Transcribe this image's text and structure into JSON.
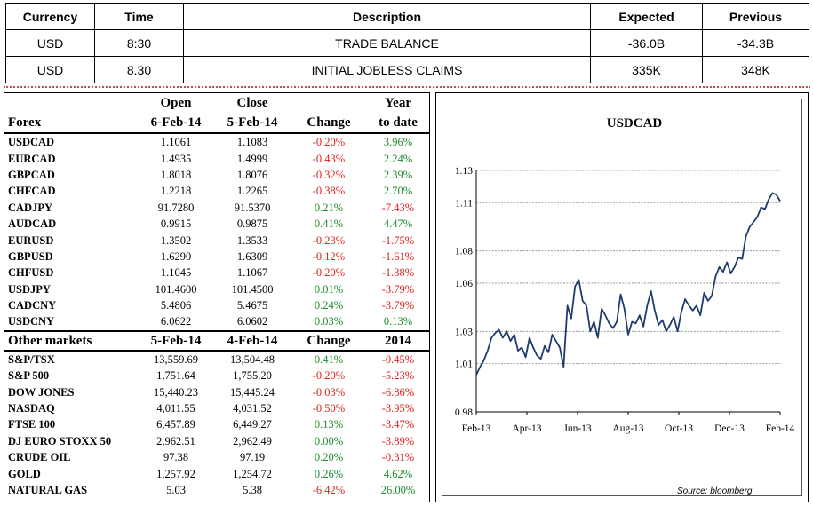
{
  "calendar": {
    "headers": [
      "Currency",
      "Time",
      "Description",
      "Expected",
      "Previous"
    ],
    "rows": [
      [
        "USD",
        "8:30",
        "TRADE BALANCE",
        "-36.0B",
        "-34.3B"
      ],
      [
        "USD",
        "8.30",
        "INITIAL JOBLESS CLAIMS",
        "335K",
        "348K"
      ]
    ]
  },
  "forex": {
    "header_top": [
      "",
      "Open",
      "Close",
      "",
      "Year"
    ],
    "header_bottom": [
      "Forex",
      "6-Feb-14",
      "5-Feb-14",
      "Change",
      "to date"
    ],
    "rows": [
      {
        "name": "USDCAD",
        "open": "1.1061",
        "close": "1.1083",
        "change": "-0.20%",
        "ytd": "3.96%"
      },
      {
        "name": "EURCAD",
        "open": "1.4935",
        "close": "1.4999",
        "change": "-0.43%",
        "ytd": "2.24%"
      },
      {
        "name": "GBPCAD",
        "open": "1.8018",
        "close": "1.8076",
        "change": "-0.32%",
        "ytd": "2.39%"
      },
      {
        "name": "CHFCAD",
        "open": "1.2218",
        "close": "1.2265",
        "change": "-0.38%",
        "ytd": "2.70%"
      },
      {
        "name": "CADJPY",
        "open": "91.7280",
        "close": "91.5370",
        "change": "0.21%",
        "ytd": "-7.43%"
      },
      {
        "name": "AUDCAD",
        "open": "0.9915",
        "close": "0.9875",
        "change": "0.41%",
        "ytd": "4.47%"
      },
      {
        "name": "EURUSD",
        "open": "1.3502",
        "close": "1.3533",
        "change": "-0.23%",
        "ytd": "-1.75%"
      },
      {
        "name": "GBPUSD",
        "open": "1.6290",
        "close": "1.6309",
        "change": "-0.12%",
        "ytd": "-1.61%"
      },
      {
        "name": "CHFUSD",
        "open": "1.1045",
        "close": "1.1067",
        "change": "-0.20%",
        "ytd": "-1.38%"
      },
      {
        "name": "USDJPY",
        "open": "101.4600",
        "close": "101.4500",
        "change": "0.01%",
        "ytd": "-3.79%"
      },
      {
        "name": "CADCNY",
        "open": "5.4806",
        "close": "5.4675",
        "change": "0.24%",
        "ytd": "-3.79%"
      },
      {
        "name": "USDCNY",
        "open": "6.0622",
        "close": "6.0602",
        "change": "0.03%",
        "ytd": "0.13%"
      }
    ]
  },
  "markets": {
    "header": [
      "Other markets",
      "5-Feb-14",
      "4-Feb-14",
      "Change",
      "2014"
    ],
    "rows": [
      {
        "name": "S&P/TSX",
        "open": "13,559.69",
        "close": "13,504.48",
        "change": "0.41%",
        "ytd": "-0.45%"
      },
      {
        "name": "S&P 500",
        "open": "1,751.64",
        "close": "1,755.20",
        "change": "-0.20%",
        "ytd": "-5.23%"
      },
      {
        "name": "DOW JONES",
        "open": "15,440.23",
        "close": "15,445.24",
        "change": "-0.03%",
        "ytd": "-6.86%"
      },
      {
        "name": "NASDAQ",
        "open": "4,011.55",
        "close": "4,031.52",
        "change": "-0.50%",
        "ytd": "-3.95%"
      },
      {
        "name": "FTSE 100",
        "open": "6,457.89",
        "close": "6,449.27",
        "change": "0.13%",
        "ytd": "-3.47%"
      },
      {
        "name": "DJ EURO STOXX 50",
        "open": "2,962.51",
        "close": "2,962.49",
        "change": "0.00%",
        "ytd": "-3.89%"
      },
      {
        "name": "CRUDE OIL",
        "open": "97.38",
        "close": "97.19",
        "change": "0.20%",
        "ytd": "-0.31%"
      },
      {
        "name": "GOLD",
        "open": "1,257.92",
        "close": "1,254.72",
        "change": "0.26%",
        "ytd": "4.62%"
      },
      {
        "name": "NATURAL GAS",
        "open": "5.03",
        "close": "5.38",
        "change": "-6.42%",
        "ytd": "26.00%"
      }
    ]
  },
  "colors": {
    "positive": "#1e8c2e",
    "negative": "#e0201a",
    "line": "#1f3c6e"
  },
  "chart_data": {
    "type": "line",
    "title": "USDCAD",
    "source": "Source: bloomberg",
    "xlabel": "",
    "ylabel": "",
    "ylim": [
      0.98,
      1.13
    ],
    "yticks": [
      "1.13",
      "1.11",
      "1.08",
      "1.06",
      "1.03",
      "1.01",
      "0.98"
    ],
    "ytick_values": [
      1.13,
      1.11,
      1.08,
      1.06,
      1.03,
      1.01,
      0.98
    ],
    "xticks": [
      "Feb-13",
      "Apr-13",
      "Jun-13",
      "Aug-13",
      "Oct-13",
      "Dec-13",
      "Feb-14"
    ],
    "xtick_months": [
      0,
      2,
      4,
      6,
      8,
      10,
      12
    ],
    "grid": true,
    "series": [
      {
        "x": [
          0,
          0.15,
          0.3,
          0.45,
          0.6,
          0.75,
          0.9,
          1.05,
          1.2,
          1.35,
          1.5,
          1.65,
          1.8,
          1.95,
          2.1,
          2.25,
          2.4,
          2.55,
          2.7,
          2.85,
          3.0,
          3.15,
          3.3,
          3.45,
          3.6,
          3.75,
          3.9,
          4.05,
          4.2,
          4.35,
          4.5,
          4.65,
          4.8,
          4.95,
          5.1,
          5.25,
          5.4,
          5.55,
          5.7,
          5.85,
          6.0,
          6.15,
          6.3,
          6.45,
          6.6,
          6.75,
          6.9,
          7.05,
          7.2,
          7.35,
          7.5,
          7.65,
          7.8,
          7.95,
          8.1,
          8.25,
          8.4,
          8.55,
          8.7,
          8.85,
          9.0,
          9.15,
          9.3,
          9.45,
          9.6,
          9.75,
          9.9,
          10.05,
          10.2,
          10.35,
          10.5,
          10.65,
          10.8,
          10.95,
          11.1,
          11.25,
          11.4,
          11.55,
          11.7,
          11.85,
          12.0
        ],
        "values": [
          1.003,
          1.008,
          1.012,
          1.018,
          1.026,
          1.029,
          1.031,
          1.026,
          1.03,
          1.024,
          1.028,
          1.018,
          1.02,
          1.014,
          1.026,
          1.02,
          1.015,
          1.013,
          1.021,
          1.017,
          1.028,
          1.024,
          1.02,
          1.008,
          1.046,
          1.038,
          1.058,
          1.062,
          1.049,
          1.046,
          1.03,
          1.036,
          1.026,
          1.044,
          1.04,
          1.035,
          1.032,
          1.036,
          1.053,
          1.044,
          1.028,
          1.036,
          1.035,
          1.04,
          1.033,
          1.046,
          1.055,
          1.043,
          1.034,
          1.037,
          1.03,
          1.034,
          1.039,
          1.03,
          1.042,
          1.05,
          1.046,
          1.043,
          1.046,
          1.04,
          1.054,
          1.049,
          1.052,
          1.064,
          1.07,
          1.067,
          1.073,
          1.066,
          1.07,
          1.076,
          1.075,
          1.089,
          1.095,
          1.098,
          1.101,
          1.107,
          1.106,
          1.112,
          1.116,
          1.115,
          1.111
        ]
      }
    ]
  }
}
